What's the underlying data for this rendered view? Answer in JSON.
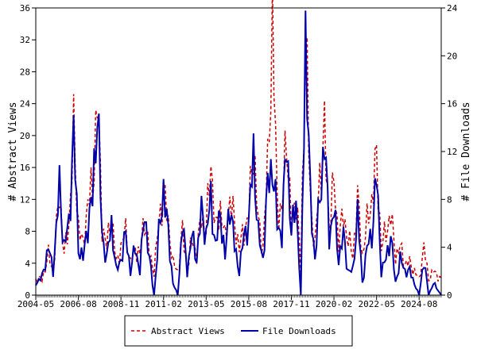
{
  "chart_data": {
    "type": "line",
    "ylabel_left": "# Abstract Views",
    "ylabel_right": "# File Downloads",
    "x_tick_labels": [
      "2004-05",
      "2006-08",
      "2008-11",
      "2011-02",
      "2013-05",
      "2015-08",
      "2017-11",
      "2020-02",
      "2022-05",
      "2024-08"
    ],
    "x_range": [
      "2004-05",
      "2025-10"
    ],
    "y_left_range": [
      0,
      36
    ],
    "y_left_ticks": [
      0,
      4,
      8,
      12,
      16,
      20,
      24,
      28,
      32,
      36
    ],
    "y_right_range": [
      0,
      24
    ],
    "y_right_ticks": [
      0,
      4,
      8,
      12,
      16,
      20,
      24
    ],
    "legend_position": "bottom-center",
    "series": [
      {
        "name": "Abstract Views",
        "axis": "left",
        "color": "#cc0000",
        "dash": "dashed",
        "keyframes": [
          [
            "2004-05",
            2
          ],
          [
            "2004-09",
            2
          ],
          [
            "2005-01",
            5
          ],
          [
            "2005-04",
            3
          ],
          [
            "2005-08",
            13
          ],
          [
            "2005-11",
            5
          ],
          [
            "2006-02",
            9
          ],
          [
            "2006-05",
            20
          ],
          [
            "2006-08",
            9
          ],
          [
            "2006-11",
            6
          ],
          [
            "2007-02",
            12
          ],
          [
            "2007-05",
            13
          ],
          [
            "2007-08",
            25
          ],
          [
            "2007-11",
            9
          ],
          [
            "2008-02",
            6
          ],
          [
            "2008-05",
            10
          ],
          [
            "2008-08",
            4
          ],
          [
            "2008-11",
            6
          ],
          [
            "2009-02",
            8
          ],
          [
            "2009-05",
            4
          ],
          [
            "2009-08",
            6
          ],
          [
            "2009-11",
            5
          ],
          [
            "2010-02",
            10
          ],
          [
            "2010-05",
            5
          ],
          [
            "2010-08",
            3
          ],
          [
            "2010-11",
            9
          ],
          [
            "2011-02",
            13
          ],
          [
            "2011-05",
            9
          ],
          [
            "2011-08",
            4
          ],
          [
            "2011-11",
            3
          ],
          [
            "2012-02",
            8
          ],
          [
            "2012-05",
            3
          ],
          [
            "2012-08",
            7
          ],
          [
            "2012-11",
            5
          ],
          [
            "2013-02",
            10
          ],
          [
            "2013-05",
            8
          ],
          [
            "2013-08",
            17
          ],
          [
            "2013-11",
            8
          ],
          [
            "2014-02",
            11
          ],
          [
            "2014-05",
            7
          ],
          [
            "2014-08",
            12
          ],
          [
            "2014-11",
            9
          ],
          [
            "2015-02",
            6
          ],
          [
            "2015-05",
            8
          ],
          [
            "2015-08",
            10
          ],
          [
            "2015-11",
            19
          ],
          [
            "2016-02",
            9
          ],
          [
            "2016-05",
            6
          ],
          [
            "2016-08",
            16
          ],
          [
            "2016-11",
            34
          ],
          [
            "2017-02",
            12
          ],
          [
            "2017-05",
            10
          ],
          [
            "2017-08",
            21
          ],
          [
            "2017-11",
            8
          ],
          [
            "2018-02",
            13
          ],
          [
            "2018-05",
            3
          ],
          [
            "2018-08",
            34
          ],
          [
            "2018-11",
            12
          ],
          [
            "2019-02",
            6
          ],
          [
            "2019-05",
            15
          ],
          [
            "2019-08",
            20
          ],
          [
            "2019-11",
            9
          ],
          [
            "2020-02",
            14
          ],
          [
            "2020-05",
            7
          ],
          [
            "2020-08",
            10
          ],
          [
            "2020-11",
            7
          ],
          [
            "2021-02",
            5
          ],
          [
            "2021-05",
            12
          ],
          [
            "2021-08",
            5
          ],
          [
            "2021-11",
            9
          ],
          [
            "2022-02",
            12
          ],
          [
            "2022-05",
            17
          ],
          [
            "2022-08",
            6
          ],
          [
            "2022-11",
            8
          ],
          [
            "2023-02",
            10
          ],
          [
            "2023-05",
            5
          ],
          [
            "2023-08",
            6
          ],
          [
            "2023-11",
            4
          ],
          [
            "2024-02",
            4
          ],
          [
            "2024-05",
            3
          ],
          [
            "2024-08",
            2
          ],
          [
            "2024-11",
            6
          ],
          [
            "2025-02",
            2
          ],
          [
            "2025-05",
            3
          ],
          [
            "2025-10",
            2
          ]
        ]
      },
      {
        "name": "File Downloads",
        "axis": "right",
        "color": "#0000aa",
        "dash": "solid",
        "keyframes": [
          [
            "2004-05",
            1
          ],
          [
            "2004-09",
            1.5
          ],
          [
            "2005-01",
            4
          ],
          [
            "2005-04",
            2
          ],
          [
            "2005-08",
            9
          ],
          [
            "2005-11",
            4
          ],
          [
            "2006-02",
            6
          ],
          [
            "2006-05",
            13.5
          ],
          [
            "2006-08",
            4
          ],
          [
            "2006-11",
            3
          ],
          [
            "2007-02",
            6
          ],
          [
            "2007-05",
            8
          ],
          [
            "2007-08",
            16
          ],
          [
            "2007-11",
            5
          ],
          [
            "2008-02",
            3
          ],
          [
            "2008-05",
            6
          ],
          [
            "2008-08",
            2
          ],
          [
            "2008-11",
            3
          ],
          [
            "2009-02",
            5
          ],
          [
            "2009-05",
            2
          ],
          [
            "2009-08",
            4
          ],
          [
            "2009-11",
            2
          ],
          [
            "2010-02",
            7
          ],
          [
            "2010-05",
            3
          ],
          [
            "2010-08",
            0
          ],
          [
            "2010-11",
            5
          ],
          [
            "2011-02",
            9
          ],
          [
            "2011-05",
            5
          ],
          [
            "2011-08",
            1
          ],
          [
            "2011-11",
            0
          ],
          [
            "2012-02",
            6
          ],
          [
            "2012-05",
            2
          ],
          [
            "2012-08",
            5
          ],
          [
            "2012-11",
            3
          ],
          [
            "2013-02",
            7
          ],
          [
            "2013-05",
            5
          ],
          [
            "2013-08",
            8
          ],
          [
            "2013-11",
            4
          ],
          [
            "2014-02",
            7
          ],
          [
            "2014-05",
            3
          ],
          [
            "2014-08",
            8
          ],
          [
            "2014-11",
            4
          ],
          [
            "2015-02",
            2
          ],
          [
            "2015-05",
            5
          ],
          [
            "2015-08",
            6
          ],
          [
            "2015-11",
            12
          ],
          [
            "2016-02",
            5
          ],
          [
            "2016-05",
            3
          ],
          [
            "2016-08",
            9
          ],
          [
            "2016-11",
            11
          ],
          [
            "2017-02",
            6
          ],
          [
            "2017-05",
            5
          ],
          [
            "2017-08",
            13
          ],
          [
            "2017-11",
            5
          ],
          [
            "2018-02",
            8
          ],
          [
            "2018-05",
            0
          ],
          [
            "2018-08",
            22
          ],
          [
            "2018-11",
            8
          ],
          [
            "2019-02",
            3
          ],
          [
            "2019-05",
            8
          ],
          [
            "2019-08",
            13
          ],
          [
            "2019-11",
            5
          ],
          [
            "2020-02",
            7
          ],
          [
            "2020-05",
            3
          ],
          [
            "2020-08",
            5
          ],
          [
            "2020-11",
            2
          ],
          [
            "2021-02",
            2
          ],
          [
            "2021-05",
            7
          ],
          [
            "2021-08",
            1
          ],
          [
            "2021-11",
            4
          ],
          [
            "2022-02",
            5
          ],
          [
            "2022-05",
            10
          ],
          [
            "2022-08",
            2
          ],
          [
            "2022-11",
            3
          ],
          [
            "2023-02",
            5
          ],
          [
            "2023-05",
            1
          ],
          [
            "2023-08",
            3
          ],
          [
            "2023-11",
            2
          ],
          [
            "2024-02",
            2
          ],
          [
            "2024-05",
            1
          ],
          [
            "2024-08",
            0
          ],
          [
            "2024-11",
            3
          ],
          [
            "2025-02",
            0
          ],
          [
            "2025-05",
            1
          ],
          [
            "2025-10",
            0
          ]
        ]
      }
    ]
  }
}
